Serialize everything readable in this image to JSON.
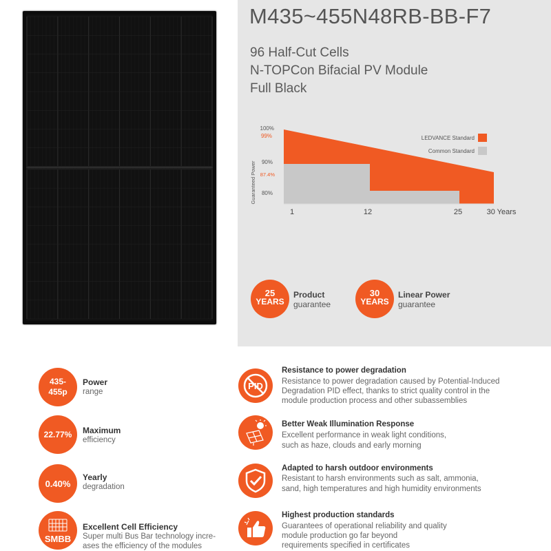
{
  "product": {
    "title": "M435~455N48RB-BB-F7",
    "subtitle_lines": [
      "96 Half-Cut Cells",
      "N-TOPCon Bifacial PV Module",
      "Full Black"
    ]
  },
  "colors": {
    "accent": "#f05a23",
    "common": "#c8c8c8",
    "band": "#e6e6e6"
  },
  "chart_data": {
    "type": "area",
    "ylabel": "Guaranteed Power",
    "y_tick_labels": [
      "100%",
      "99%",
      "90%",
      "87.4%",
      "80%"
    ],
    "x_tick_labels": [
      "1",
      "12",
      "25",
      "30 Years"
    ],
    "legend": [
      "LEDVANCE Standard",
      "Common Standard"
    ],
    "series": [
      {
        "name": "LEDVANCE Standard",
        "x": [
          1,
          30
        ],
        "y": [
          99,
          87.4
        ]
      },
      {
        "name": "Common Standard",
        "x": [
          1,
          12,
          12,
          25,
          25,
          30
        ],
        "y": [
          90,
          90,
          80,
          80,
          80,
          80
        ]
      }
    ]
  },
  "guarantees": [
    {
      "years": "25",
      "unit": "YEARS",
      "title": "Product",
      "sub": "guarantee"
    },
    {
      "years": "30",
      "unit": "YEARS",
      "title": "Linear Power",
      "sub": "guarantee"
    }
  ],
  "left_features": [
    {
      "badge": "435-455p",
      "title": "Power",
      "text": [
        "range"
      ]
    },
    {
      "badge": "22.77%",
      "title": "Maximum",
      "text": [
        "efficiency"
      ]
    },
    {
      "badge": "0.40%",
      "title": "Yearly",
      "text": [
        "degradation"
      ]
    },
    {
      "badge": "SMBB",
      "title": "Excellent Cell Efficiency",
      "text": [
        "Super multi Bus Bar technology incre-",
        "ases the efficiency of the modules"
      ]
    }
  ],
  "right_features": [
    {
      "icon": "pid-icon",
      "icon_text": "PID",
      "title": "Resistance to power degradation",
      "text": [
        "Resistance to power degradation caused by Potential-Induced",
        "Degradation PID effect, thanks to strict quality control in the",
        "module production process and other subassemblies"
      ]
    },
    {
      "icon": "sun-panel-icon",
      "title": "Better Weak Illumination Response",
      "text": [
        "Excellent performance in weak light conditions,",
        "such as haze, clouds and early morning"
      ]
    },
    {
      "icon": "shield-check-icon",
      "title": "Adapted to harsh outdoor environments",
      "text": [
        "Resistant to harsh environments such as salt, ammonia,",
        "sand, high temperatures and high humidity environments"
      ]
    },
    {
      "icon": "thumbs-up-icon",
      "title": "Highest production standards",
      "text": [
        "Guarantees of operational reliability and quality",
        "module production go far beyond",
        "requirements specified in certificates"
      ]
    }
  ]
}
